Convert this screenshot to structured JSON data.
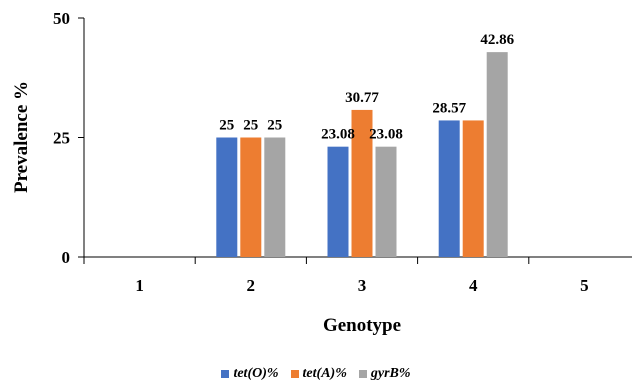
{
  "chart_data": {
    "type": "bar",
    "categories": [
      "1",
      "2",
      "3",
      "4",
      "5"
    ],
    "series": [
      {
        "name": "tet(O)%",
        "color": "#4472c4",
        "values": [
          null,
          25,
          23.08,
          28.57,
          null
        ]
      },
      {
        "name": "tet(A)%",
        "color": "#ed7d31",
        "values": [
          null,
          25,
          30.77,
          28.57,
          null
        ]
      },
      {
        "name": "gyrB%",
        "color": "#a5a5a5",
        "values": [
          null,
          25,
          23.08,
          42.86,
          null
        ]
      }
    ],
    "data_labels": [
      [
        null,
        "25",
        "23.08",
        "28.57",
        null
      ],
      [
        null,
        "25",
        "30.77",
        null,
        null
      ],
      [
        null,
        "25",
        "23.08",
        "42.86",
        null
      ]
    ],
    "xlabel": "Genotype",
    "ylabel": "Prevalence %",
    "ylim": [
      0,
      50
    ],
    "yticks": [
      0,
      25,
      50
    ],
    "legend_position": "bottom",
    "grid": false
  }
}
